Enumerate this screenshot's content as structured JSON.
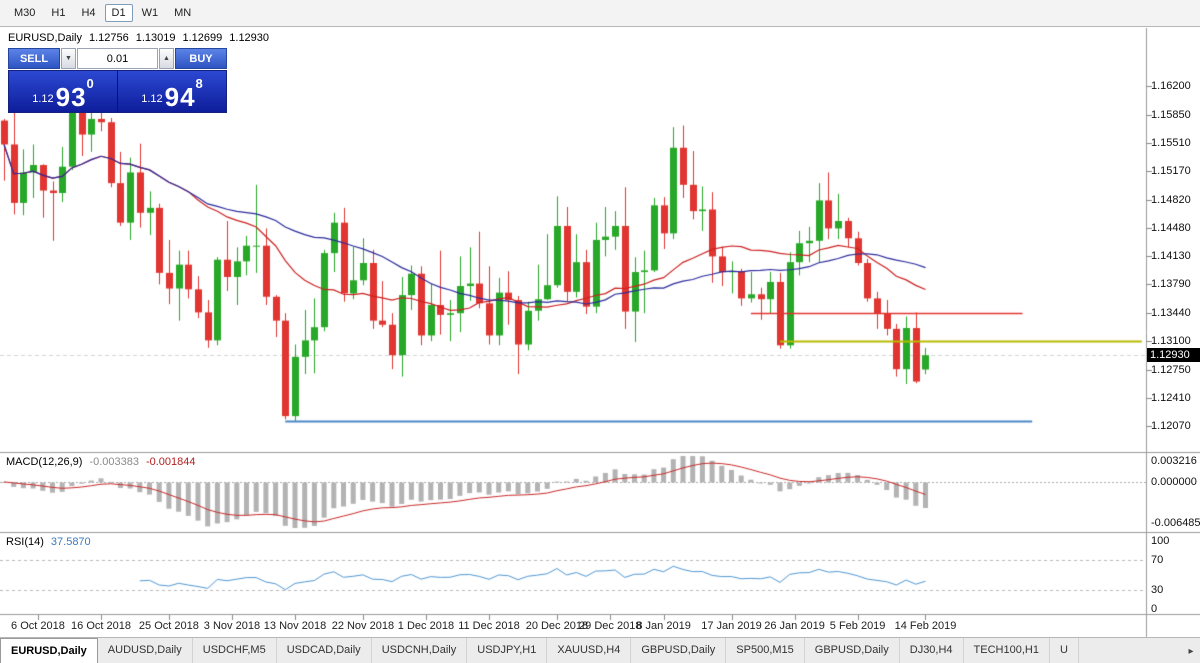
{
  "toolbar": {
    "timeframes": [
      {
        "label": "M30",
        "active": false
      },
      {
        "label": "H1",
        "active": false
      },
      {
        "label": "H4",
        "active": false
      },
      {
        "label": "D1",
        "active": true
      },
      {
        "label": "W1",
        "active": false
      },
      {
        "label": "MN",
        "active": false
      }
    ]
  },
  "chart": {
    "header": {
      "symbol_period": "EURUSD,Daily",
      "open": "1.12756",
      "high": "1.13019",
      "low": "1.12699",
      "close": "1.12930"
    },
    "trade_panel": {
      "sell_label": "SELL",
      "buy_label": "BUY",
      "volume": "0.01",
      "volume_down_icon": "▼",
      "volume_up_icon": "▲",
      "sell_price": {
        "small": "1.12",
        "big": "93",
        "sup": "0"
      },
      "buy_price": {
        "small": "1.12",
        "big": "94",
        "sup": "8"
      }
    },
    "price_axis": {
      "ticks": [
        "1.16200",
        "1.15850",
        "1.15510",
        "1.15170",
        "1.14820",
        "1.14480",
        "1.14130",
        "1.13790",
        "1.13440",
        "1.13100",
        "1.12750",
        "1.12410",
        "1.12070"
      ],
      "current_price": "1.12930"
    },
    "date_axis": {
      "labels": [
        "6 Oct 2018",
        "16 Oct 2018",
        "25 Oct 2018",
        "3 Nov 2018",
        "13 Nov 2018",
        "22 Nov 2018",
        "1 Dec 2018",
        "11 Dec 2018",
        "20 Dec 2018",
        "29 Dec 2018",
        "8 Jan 2019",
        "17 Jan 2019",
        "26 Jan 2019",
        "5 Feb 2019",
        "14 Feb 2019"
      ],
      "bar_indices": [
        3.5,
        10,
        17,
        23.5,
        30,
        37,
        43.5,
        50,
        57,
        62.5,
        68,
        75,
        81.5,
        88,
        95
      ]
    }
  },
  "chart_data": {
    "type": "candlestick",
    "symbol": "EURUSD",
    "timeframe": "Daily",
    "colors": {
      "bull": "#28a828",
      "bear": "#e03531",
      "macd_hist": "#b3b3b3",
      "macd_signal": "#c82828",
      "rsi": "#4f96d2",
      "bid_line": "#d4d4d4"
    },
    "candles": [
      [
        1.1578,
        1.158,
        1.1505,
        1.1549
      ],
      [
        1.1549,
        1.1594,
        1.1464,
        1.1478
      ],
      [
        1.1478,
        1.1543,
        1.1463,
        1.1515
      ],
      [
        1.1515,
        1.1549,
        1.1484,
        1.1524
      ],
      [
        1.1524,
        1.1525,
        1.146,
        1.1493
      ],
      [
        1.1493,
        1.1504,
        1.1432,
        1.149
      ],
      [
        1.149,
        1.1546,
        1.1479,
        1.1522
      ],
      [
        1.1522,
        1.1599,
        1.1518,
        1.1593
      ],
      [
        1.1593,
        1.1606,
        1.1535,
        1.1561
      ],
      [
        1.1561,
        1.1601,
        1.154,
        1.158
      ],
      [
        1.158,
        1.1595,
        1.1565,
        1.1576
      ],
      [
        1.1576,
        1.1581,
        1.1497,
        1.1502
      ],
      [
        1.1502,
        1.154,
        1.145,
        1.1454
      ],
      [
        1.1454,
        1.1533,
        1.1433,
        1.1515
      ],
      [
        1.1515,
        1.155,
        1.1448,
        1.1466
      ],
      [
        1.1466,
        1.1492,
        1.1439,
        1.1472
      ],
      [
        1.1472,
        1.1477,
        1.1379,
        1.1393
      ],
      [
        1.1393,
        1.1433,
        1.1355,
        1.1374
      ],
      [
        1.1374,
        1.142,
        1.1335,
        1.1403
      ],
      [
        1.1403,
        1.142,
        1.1362,
        1.1373
      ],
      [
        1.1373,
        1.1389,
        1.1338,
        1.1345
      ],
      [
        1.1345,
        1.136,
        1.1302,
        1.1311
      ],
      [
        1.1311,
        1.1412,
        1.1305,
        1.1409
      ],
      [
        1.1409,
        1.1456,
        1.1371,
        1.1388
      ],
      [
        1.1388,
        1.1424,
        1.1354,
        1.1407
      ],
      [
        1.1407,
        1.1438,
        1.139,
        1.1426
      ],
      [
        1.1426,
        1.15,
        1.1393,
        1.1426
      ],
      [
        1.1426,
        1.1447,
        1.1354,
        1.1364
      ],
      [
        1.1364,
        1.1366,
        1.1315,
        1.1335
      ],
      [
        1.1335,
        1.1344,
        1.1215,
        1.1219
      ],
      [
        1.1219,
        1.1306,
        1.1213,
        1.1291
      ],
      [
        1.1291,
        1.1348,
        1.127,
        1.1311
      ],
      [
        1.1311,
        1.1362,
        1.1271,
        1.1327
      ],
      [
        1.1327,
        1.1421,
        1.1322,
        1.1417
      ],
      [
        1.1417,
        1.1466,
        1.1394,
        1.1454
      ],
      [
        1.1454,
        1.1472,
        1.1358,
        1.1368
      ],
      [
        1.1368,
        1.1425,
        1.1361,
        1.1384
      ],
      [
        1.1384,
        1.1435,
        1.1378,
        1.1405
      ],
      [
        1.1405,
        1.1421,
        1.1325,
        1.1335
      ],
      [
        1.1335,
        1.1383,
        1.1327,
        1.133
      ],
      [
        1.133,
        1.1344,
        1.1276,
        1.1293
      ],
      [
        1.1293,
        1.1388,
        1.1267,
        1.1366
      ],
      [
        1.1366,
        1.1402,
        1.1348,
        1.1392
      ],
      [
        1.1392,
        1.1401,
        1.1305,
        1.1317
      ],
      [
        1.1317,
        1.138,
        1.131,
        1.1354
      ],
      [
        1.1354,
        1.142,
        1.1318,
        1.1342
      ],
      [
        1.1342,
        1.136,
        1.131,
        1.1344
      ],
      [
        1.1344,
        1.1413,
        1.1321,
        1.1377
      ],
      [
        1.1377,
        1.1424,
        1.1359,
        1.138
      ],
      [
        1.138,
        1.1443,
        1.135,
        1.1356
      ],
      [
        1.1356,
        1.1401,
        1.1306,
        1.1317
      ],
      [
        1.1317,
        1.1387,
        1.1305,
        1.1369
      ],
      [
        1.1369,
        1.1395,
        1.133,
        1.136
      ],
      [
        1.136,
        1.1365,
        1.127,
        1.1306
      ],
      [
        1.1306,
        1.1358,
        1.1299,
        1.1347
      ],
      [
        1.1347,
        1.1403,
        1.1335,
        1.1361
      ],
      [
        1.1361,
        1.144,
        1.136,
        1.1378
      ],
      [
        1.1378,
        1.1486,
        1.1375,
        1.145
      ],
      [
        1.145,
        1.1473,
        1.1358,
        1.137
      ],
      [
        1.137,
        1.144,
        1.1363,
        1.1406
      ],
      [
        1.1406,
        1.1421,
        1.1343,
        1.1352
      ],
      [
        1.1352,
        1.1454,
        1.1344,
        1.1433
      ],
      [
        1.1433,
        1.1473,
        1.1413,
        1.1437
      ],
      [
        1.1437,
        1.1468,
        1.1421,
        1.145
      ],
      [
        1.145,
        1.1497,
        1.1325,
        1.1346
      ],
      [
        1.1346,
        1.1412,
        1.1309,
        1.1394
      ],
      [
        1.1394,
        1.142,
        1.1344,
        1.1396
      ],
      [
        1.1396,
        1.1484,
        1.1394,
        1.1475
      ],
      [
        1.1475,
        1.1485,
        1.1422,
        1.1441
      ],
      [
        1.1441,
        1.157,
        1.1434,
        1.1545
      ],
      [
        1.1545,
        1.1572,
        1.1484,
        1.15
      ],
      [
        1.15,
        1.1541,
        1.1458,
        1.1468
      ],
      [
        1.1468,
        1.1498,
        1.1444,
        1.147
      ],
      [
        1.147,
        1.1491,
        1.1381,
        1.1413
      ],
      [
        1.1413,
        1.1425,
        1.1377,
        1.1394
      ],
      [
        1.1394,
        1.1407,
        1.1368,
        1.1395
      ],
      [
        1.1395,
        1.1398,
        1.1353,
        1.1362
      ],
      [
        1.1362,
        1.1394,
        1.1357,
        1.1367
      ],
      [
        1.1367,
        1.1375,
        1.1336,
        1.1361
      ],
      [
        1.1361,
        1.1394,
        1.1344,
        1.1382
      ],
      [
        1.1382,
        1.1393,
        1.1301,
        1.1305
      ],
      [
        1.1305,
        1.1418,
        1.1301,
        1.1406
      ],
      [
        1.1406,
        1.1444,
        1.139,
        1.1429
      ],
      [
        1.1429,
        1.1449,
        1.1406,
        1.1432
      ],
      [
        1.1432,
        1.1502,
        1.1405,
        1.1481
      ],
      [
        1.1481,
        1.1515,
        1.1434,
        1.1447
      ],
      [
        1.1447,
        1.1489,
        1.1434,
        1.1456
      ],
      [
        1.1456,
        1.146,
        1.1424,
        1.1435
      ],
      [
        1.1435,
        1.1443,
        1.1402,
        1.1405
      ],
      [
        1.1405,
        1.141,
        1.1358,
        1.1362
      ],
      [
        1.1362,
        1.137,
        1.1325,
        1.1344
      ],
      [
        1.1344,
        1.136,
        1.1317,
        1.1325
      ],
      [
        1.1325,
        1.1331,
        1.1267,
        1.1276
      ],
      [
        1.1276,
        1.134,
        1.1258,
        1.1326
      ],
      [
        1.1326,
        1.1345,
        1.1259,
        1.1261
      ],
      [
        1.12756,
        1.13019,
        1.12699,
        1.1293
      ]
    ],
    "moving_averages": [
      {
        "name": "ma-fast",
        "period": 20,
        "color": "#cc2020",
        "width": 1.2
      },
      {
        "name": "ma-slow",
        "period": 34,
        "color": "#2b2b9c",
        "width": 1.2
      }
    ],
    "hlines": [
      {
        "name": "resistance-line-red",
        "price": 1.1344,
        "color": "#e03531",
        "width": 1.4,
        "from_bar": 77,
        "to_bar": 105
      },
      {
        "name": "resistance-line-olive",
        "price": 1.131,
        "color": "#b7ba00",
        "width": 2,
        "from_bar": 80,
        "to_bar": 117.3
      },
      {
        "name": "support-line-blue",
        "price": 1.1213,
        "color": "#4a87c7",
        "width": 2,
        "from_bar": 29,
        "to_bar": 106
      }
    ]
  },
  "macd_panel": {
    "label": "MACD(12,26,9)",
    "value_main": "-0.003383",
    "value_signal": "-0.001844",
    "axis": [
      "0.003216",
      "0.000000",
      "-0.006485"
    ],
    "params": {
      "fast": 12,
      "slow": 26,
      "signal": 9
    }
  },
  "rsi_panel": {
    "label": "RSI(14)",
    "value": "37.5870",
    "period": 14,
    "levels": [
      70,
      30
    ],
    "axis": [
      "100",
      "70",
      "30",
      "0"
    ]
  },
  "tab_bar": {
    "scroll_right_icon": "▸",
    "tabs": [
      {
        "label": "EURUSD,Daily",
        "active": true
      },
      {
        "label": "AUDUSD,Daily",
        "active": false
      },
      {
        "label": "USDCHF,M5",
        "active": false
      },
      {
        "label": "USDCAD,Daily",
        "active": false
      },
      {
        "label": "USDCNH,Daily",
        "active": false
      },
      {
        "label": "USDJPY,H1",
        "active": false
      },
      {
        "label": "XAUUSD,H4",
        "active": false
      },
      {
        "label": "GBPUSD,Daily",
        "active": false
      },
      {
        "label": "SP500,M15",
        "active": false
      },
      {
        "label": "GBPUSD,Daily",
        "active": false
      },
      {
        "label": "DJ30,H4",
        "active": false
      },
      {
        "label": "TECH100,H1",
        "active": false
      },
      {
        "label": "U",
        "active": false
      }
    ]
  }
}
